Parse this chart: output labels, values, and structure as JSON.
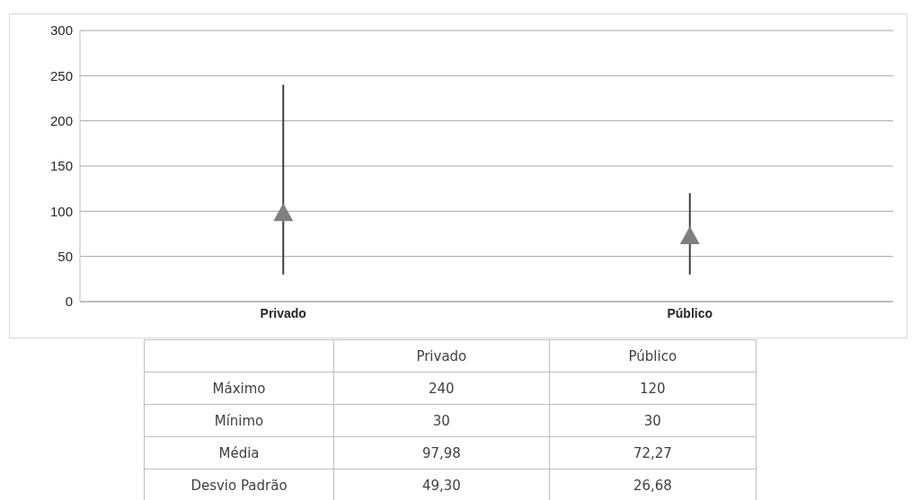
{
  "chart_data": {
    "type": "scatter",
    "categories": [
      "Privado",
      "Público"
    ],
    "series": [
      {
        "name": "Média",
        "color": "#7f7f7f",
        "values": [
          97.98,
          72.27
        ],
        "value_labels": [
          "97,98",
          "72,27"
        ],
        "errors": [
          [
            30,
            240
          ],
          [
            30,
            120
          ]
        ]
      }
    ],
    "marker": "triangle",
    "ylim": [
      0,
      300
    ],
    "yticks": [
      0,
      50,
      100,
      150,
      200,
      250,
      300
    ],
    "grid": "y",
    "annotations": [
      "Máximo",
      "240",
      "120",
      "Mínimo",
      "30",
      "30",
      "Desvio Padrão",
      "49,30",
      "26,68"
    ]
  }
}
